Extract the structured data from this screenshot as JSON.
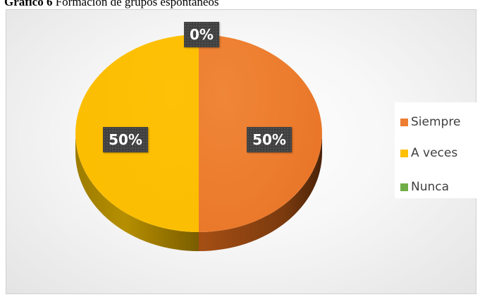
{
  "caption": {
    "bold": "Gráfico 6",
    "text": " Formación de grupos espontáneos"
  },
  "chart_data": {
    "type": "pie",
    "title": "Gráfico 6 Formación de grupos espontáneos",
    "categories": [
      "Siempre",
      "A veces",
      "Nunca"
    ],
    "values": [
      50,
      50,
      0
    ],
    "value_labels": [
      "50%",
      "50%",
      "0%"
    ],
    "colors": [
      "#ED7D31",
      "#FFC000",
      "#70AD47"
    ],
    "legend_position": "right",
    "style": "3d"
  }
}
